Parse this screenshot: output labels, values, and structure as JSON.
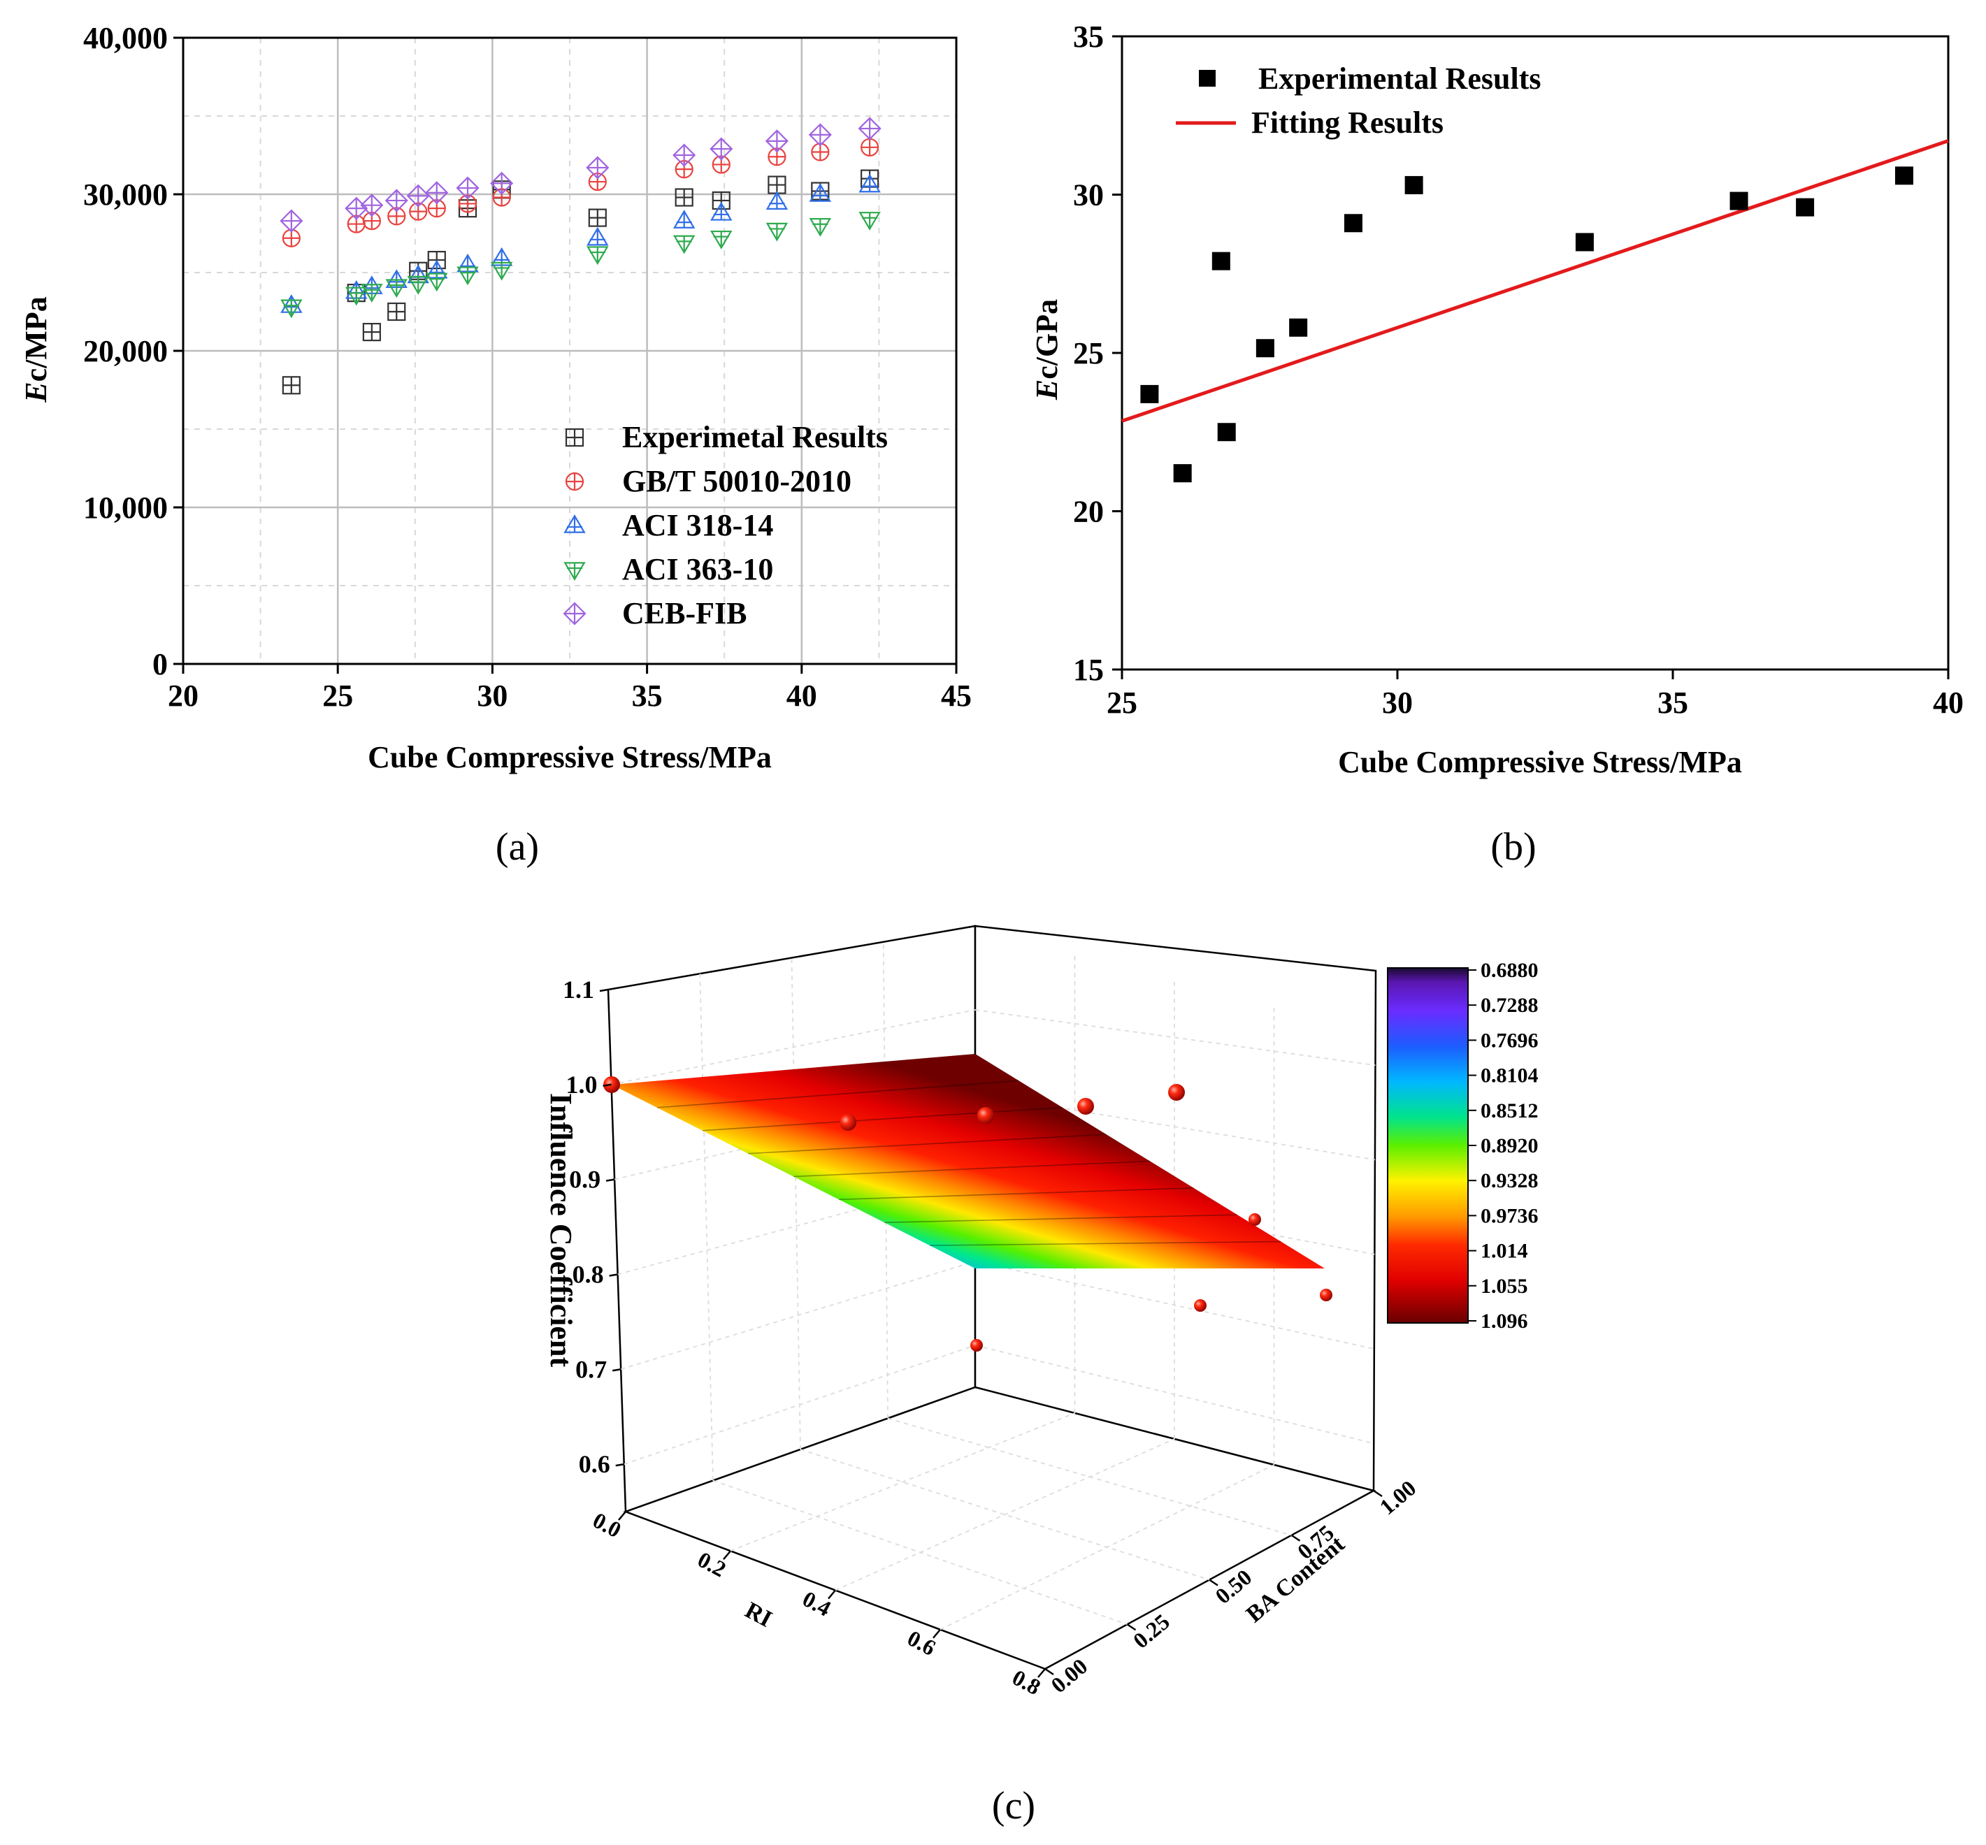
{
  "chart_data": [
    {
      "panel": "a",
      "panel_label": "(a)",
      "type": "scatter",
      "xlabel": "Cube Compressive Stress/MPa",
      "ylabel_italic": "E",
      "ylabel_rest": "c/MPa",
      "xlim": [
        20,
        45
      ],
      "ylim": [
        0,
        40000
      ],
      "xticks": [
        20,
        25,
        30,
        35,
        40,
        45
      ],
      "yticks": [
        0,
        10000,
        20000,
        30000,
        40000
      ],
      "ytick_labels": [
        "0",
        "10,000",
        "20,000",
        "30,000",
        "40,000"
      ],
      "grid": true,
      "legend_position": "bottom-right",
      "x": [
        23.5,
        25.6,
        26.1,
        26.9,
        27.6,
        28.2,
        29.2,
        30.3,
        33.4,
        36.2,
        37.4,
        39.2,
        40.6,
        42.2
      ],
      "series": [
        {
          "name": "Experimetal Results",
          "marker": "square-plus",
          "color": "#333333",
          "values": [
            17800,
            23700,
            21200,
            22500,
            25100,
            25800,
            29100,
            30300,
            28500,
            29800,
            29600,
            30600,
            30200,
            31000
          ]
        },
        {
          "name": "GB/T 50010-2010",
          "marker": "circle-plus",
          "color": "#e8433f",
          "values": [
            27200,
            28100,
            28300,
            28600,
            28900,
            29100,
            29400,
            29800,
            30800,
            31600,
            31900,
            32400,
            32700,
            33000
          ]
        },
        {
          "name": "ACI 318-14",
          "marker": "triangle-up",
          "color": "#2f6ee8",
          "values": [
            22900,
            23800,
            24100,
            24500,
            24800,
            25100,
            25500,
            25900,
            27200,
            28300,
            28800,
            29500,
            30000,
            30600
          ]
        },
        {
          "name": "ACI 363-10",
          "marker": "triangle-down",
          "color": "#2eaa4e",
          "values": [
            22800,
            23600,
            23800,
            24100,
            24300,
            24500,
            24900,
            25200,
            26200,
            26900,
            27200,
            27700,
            28000,
            28400
          ]
        },
        {
          "name": "CEB-FIB",
          "marker": "diamond-plus",
          "color": "#a064e0",
          "values": [
            28300,
            29100,
            29300,
            29600,
            29900,
            30100,
            30400,
            30700,
            31700,
            32500,
            32900,
            33400,
            33800,
            34200
          ]
        }
      ]
    },
    {
      "panel": "b",
      "panel_label": "(b)",
      "type": "scatter",
      "xlabel": "Cube Compressive Stress/MPa",
      "ylabel_italic": "E",
      "ylabel_rest": "c/GPa",
      "xlim": [
        25,
        40
      ],
      "ylim": [
        15,
        35
      ],
      "xticks": [
        25,
        30,
        35,
        40
      ],
      "yticks": [
        15,
        20,
        25,
        30,
        35
      ],
      "grid": false,
      "legend_position": "top-left",
      "series": [
        {
          "name": "Experimental Results",
          "marker": "filled-square",
          "color": "#000000",
          "x": [
            25.5,
            26.1,
            26.8,
            26.9,
            27.6,
            28.2,
            29.2,
            30.3,
            33.4,
            36.2,
            37.4,
            39.2
          ],
          "y": [
            23.7,
            21.2,
            27.9,
            22.5,
            25.15,
            25.8,
            29.1,
            30.3,
            28.5,
            29.8,
            29.6,
            30.6
          ]
        }
      ],
      "fit": {
        "name": "Fitting Results",
        "color": "#e31a1c",
        "x": [
          25,
          40
        ],
        "y": [
          22.85,
          31.7
        ]
      }
    },
    {
      "panel": "c",
      "panel_label": "(c)",
      "type": "surface3d",
      "xlabel": "RI",
      "ylabel": "BA Content",
      "zlabel": "Influence Coefficient",
      "xlim": [
        0,
        0.8
      ],
      "ylim": [
        0,
        1
      ],
      "zlim": [
        0.55,
        1.1
      ],
      "xticks": [
        "0.0",
        "0.2",
        "0.4",
        "0.6",
        "0.8"
      ],
      "yticks": [
        "0.00",
        "0.25",
        "0.50",
        "0.75",
        "1.00"
      ],
      "zticks": [
        "0.6",
        "0.7",
        "0.8",
        "0.9",
        "1.0",
        "1.1"
      ],
      "colorbar_ticks": [
        "0.6880",
        "0.7288",
        "0.7696",
        "0.8104",
        "0.8512",
        "0.8920",
        "0.9328",
        "0.9736",
        "1.014",
        "1.055",
        "1.096"
      ],
      "surface_corners": [
        {
          "RI": 0.0,
          "BA": 0.0,
          "z": 1.0
        },
        {
          "RI": 0.8,
          "BA": 0.0,
          "z": 1.03
        },
        {
          "RI": 0.8,
          "BA": 1.0,
          "z": 0.81
        },
        {
          "RI": 0.0,
          "BA": 1.0,
          "z": 0.81
        }
      ],
      "points": [
        {
          "RI": 0.0,
          "BA": 0.0,
          "z": 1.0
        },
        {
          "RI": 0.2,
          "BA": 0.0,
          "z": 0.96
        },
        {
          "RI": 0.4,
          "BA": 0.0,
          "z": 0.97
        },
        {
          "RI": 0.6,
          "BA": 0.0,
          "z": 0.98
        },
        {
          "RI": 0.8,
          "BA": 0.0,
          "z": 0.99
        },
        {
          "RI": 0.8,
          "BA": 0.5,
          "z": 0.86
        },
        {
          "RI": 0.8,
          "BA": 1.0,
          "z": 0.78
        },
        {
          "RI": 0.4,
          "BA": 1.0,
          "z": 0.77
        },
        {
          "RI": 0.0,
          "BA": 1.0,
          "z": 0.73
        }
      ]
    }
  ]
}
